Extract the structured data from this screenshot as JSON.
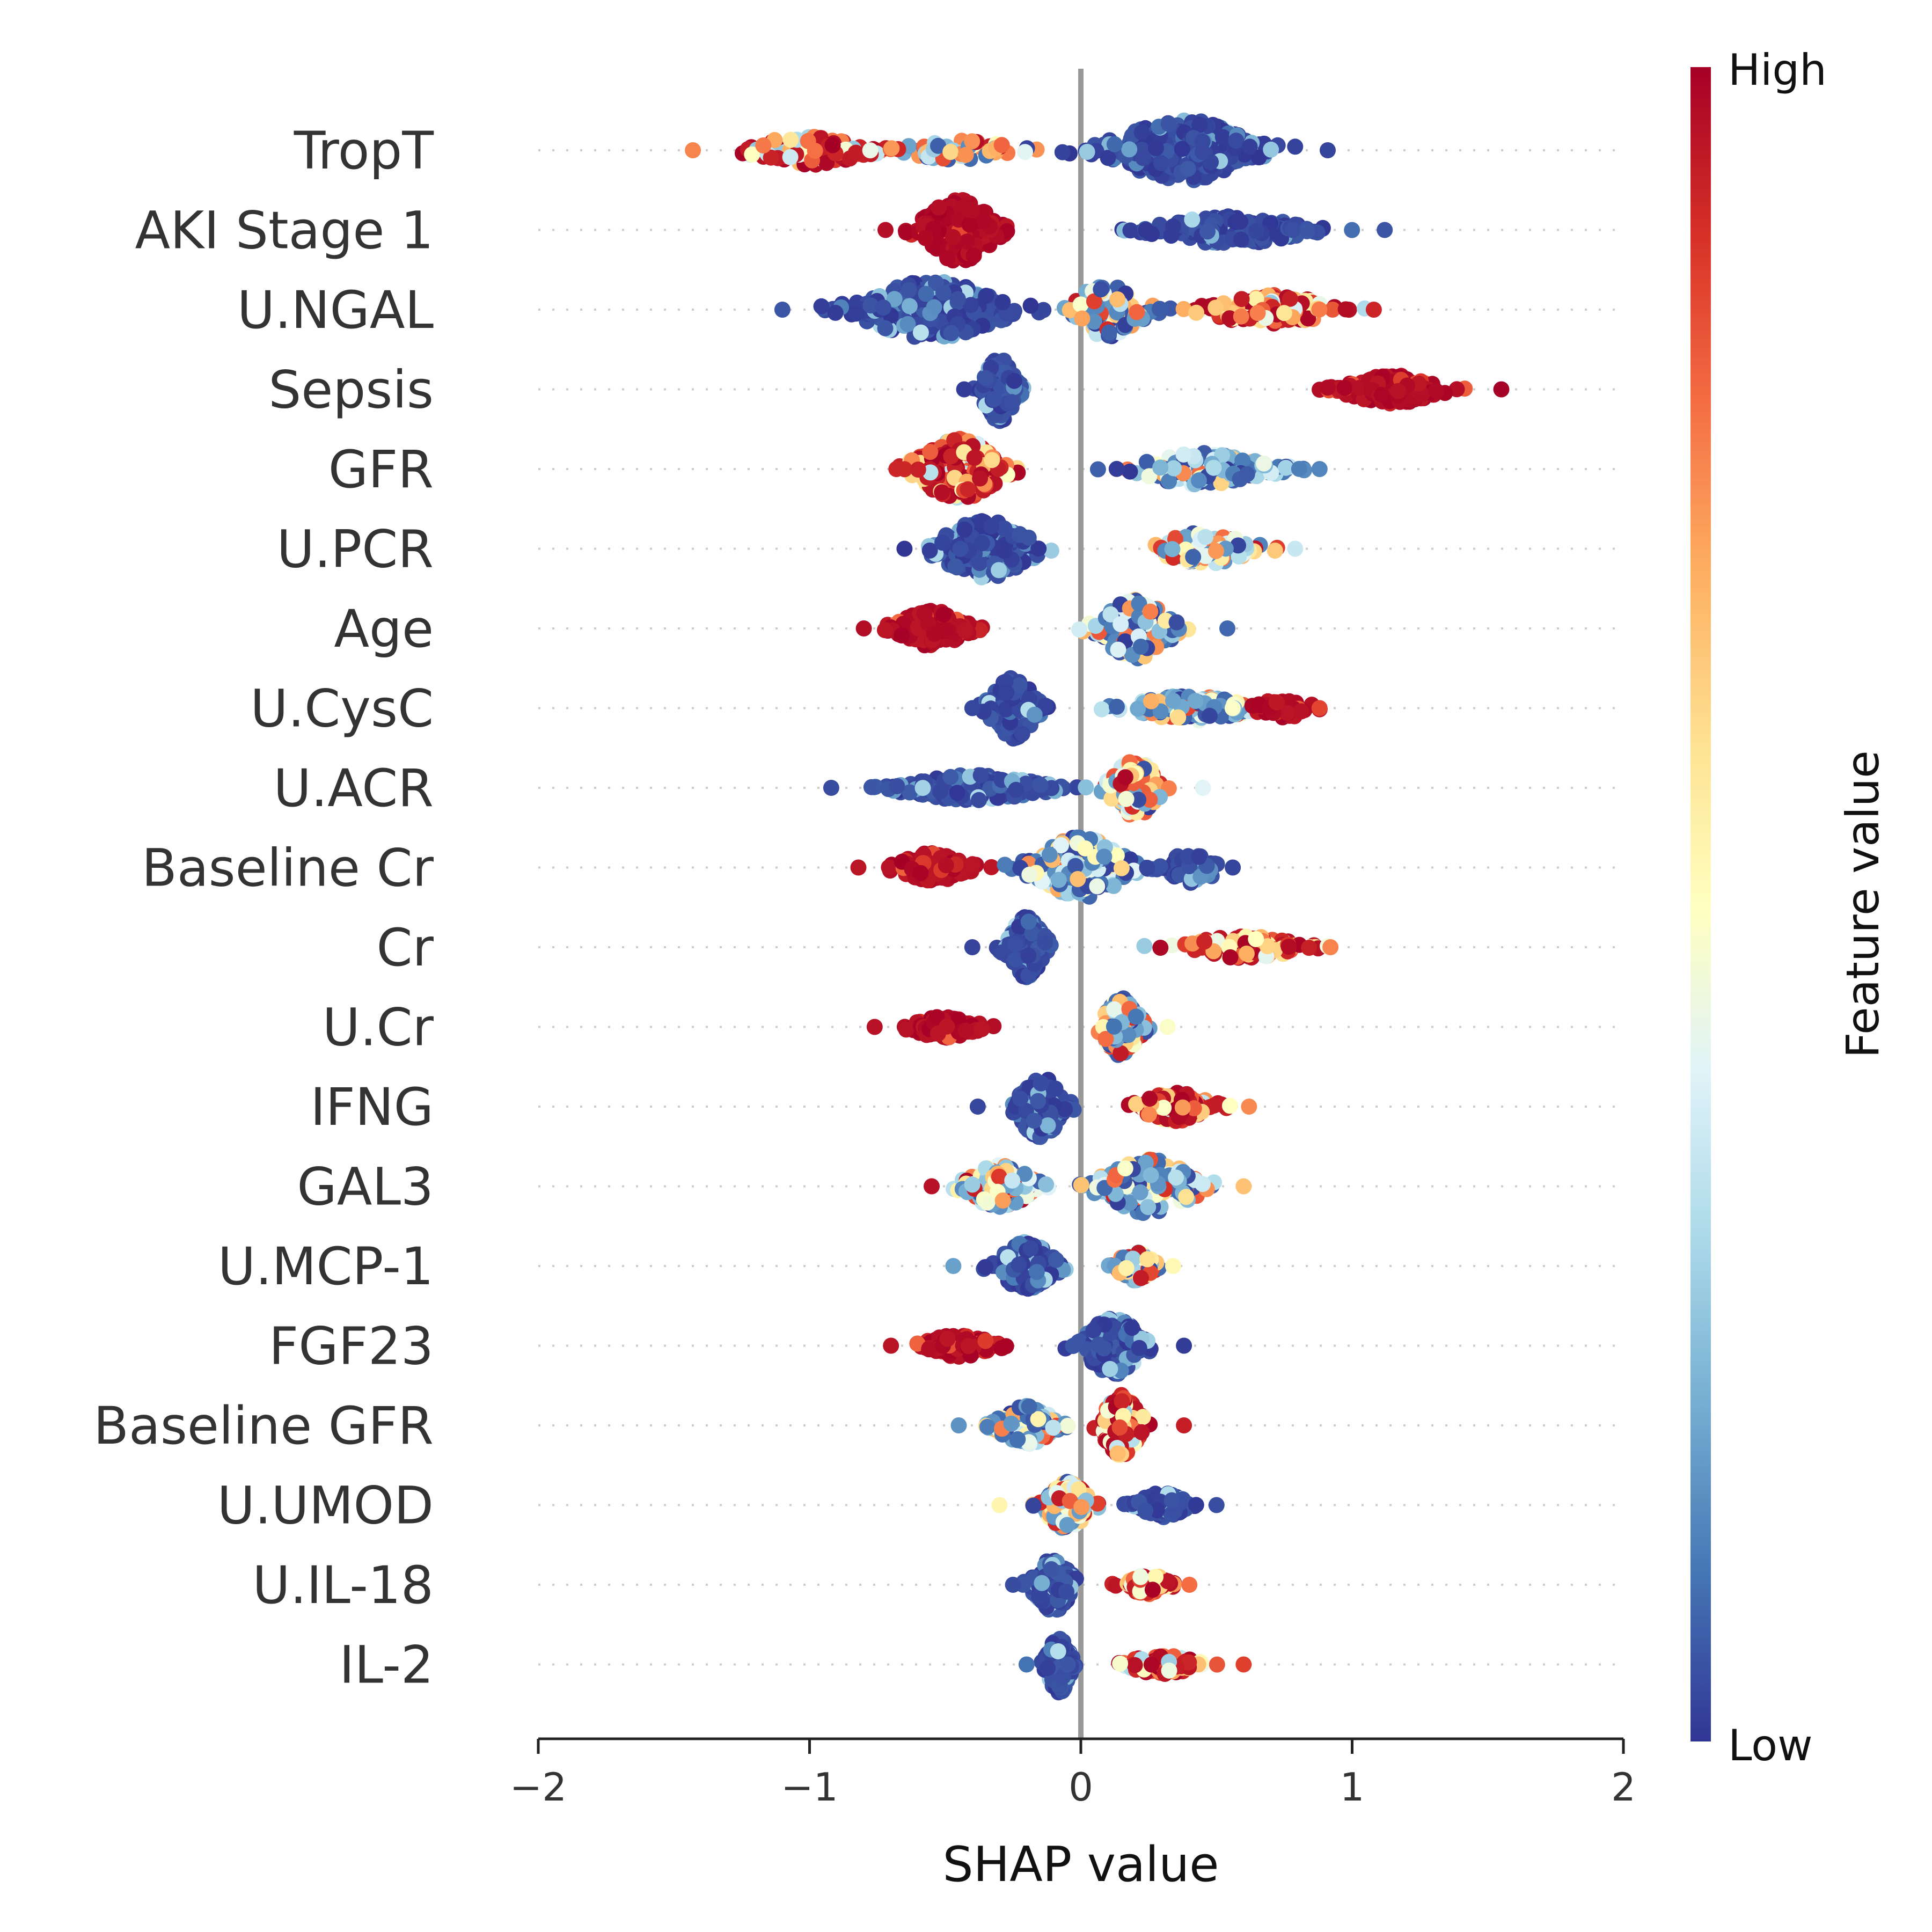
{
  "chart_data": {
    "type": "scatter",
    "subtype": "shap-beeswarm",
    "title": "",
    "xlabel": "SHAP value",
    "ylabel": "",
    "xlim": [
      -2,
      2
    ],
    "xticks": [
      -2,
      -1,
      0,
      1,
      2
    ],
    "xtick_labels": [
      "−2",
      "−1",
      "0",
      "1",
      "2"
    ],
    "zero_line": 0,
    "grid": "horizontal dotted row guides",
    "colorbar": {
      "title": "Feature value",
      "high_label": "High",
      "low_label": "Low",
      "colors": [
        "#313695",
        "#4575b4",
        "#74add1",
        "#abd9e9",
        "#e0f3f8",
        "#ffffbf",
        "#fee090",
        "#fdae61",
        "#f46d43",
        "#d73027",
        "#a50026"
      ]
    },
    "features": [
      {
        "name": "TropT",
        "min": -1.43,
        "max": 0.91,
        "clusters": [
          {
            "center": -1.0,
            "spread": 0.25,
            "height": 0.45,
            "n": 110,
            "color": "mixed-high"
          },
          {
            "center": -0.45,
            "spread": 0.25,
            "height": 0.3,
            "n": 60,
            "color": "mixed"
          },
          {
            "center": 0.38,
            "spread": 0.3,
            "height": 0.95,
            "n": 300,
            "color": "low"
          }
        ]
      },
      {
        "name": "AKI Stage 1",
        "min": -0.72,
        "max": 1.12,
        "clusters": [
          {
            "center": -0.45,
            "spread": 0.15,
            "height": 1.0,
            "n": 220,
            "color": "high"
          },
          {
            "center": 0.55,
            "spread": 0.3,
            "height": 0.45,
            "n": 170,
            "color": "low"
          }
        ]
      },
      {
        "name": "U.NGAL",
        "min": -1.1,
        "max": 1.08,
        "clusters": [
          {
            "center": -0.55,
            "spread": 0.3,
            "height": 0.9,
            "n": 260,
            "color": "low"
          },
          {
            "center": 0.1,
            "spread": 0.15,
            "height": 0.85,
            "n": 90,
            "color": "low-mixed"
          },
          {
            "center": 0.7,
            "spread": 0.25,
            "height": 0.5,
            "n": 120,
            "color": "mixed-high"
          }
        ]
      },
      {
        "name": "Sepsis",
        "min": -0.43,
        "max": 1.55,
        "clusters": [
          {
            "center": -0.3,
            "spread": 0.07,
            "height": 1.0,
            "n": 200,
            "color": "low"
          },
          {
            "center": 1.15,
            "spread": 0.2,
            "height": 0.45,
            "n": 160,
            "color": "high"
          }
        ]
      },
      {
        "name": "GFR",
        "min": -0.68,
        "max": 0.88,
        "clusters": [
          {
            "center": -0.45,
            "spread": 0.18,
            "height": 0.95,
            "n": 220,
            "color": "mixed-high"
          },
          {
            "center": 0.45,
            "spread": 0.28,
            "height": 0.5,
            "n": 170,
            "color": "mixed-low"
          }
        ]
      },
      {
        "name": "U.PCR",
        "min": -0.65,
        "max": 0.79,
        "clusters": [
          {
            "center": -0.35,
            "spread": 0.2,
            "height": 0.9,
            "n": 220,
            "color": "low"
          },
          {
            "center": 0.45,
            "spread": 0.2,
            "height": 0.5,
            "n": 120,
            "color": "mixed"
          }
        ]
      },
      {
        "name": "Age",
        "min": -0.8,
        "max": 0.54,
        "clusters": [
          {
            "center": -0.55,
            "spread": 0.15,
            "height": 0.55,
            "n": 150,
            "color": "high"
          },
          {
            "center": 0.2,
            "spread": 0.15,
            "height": 0.95,
            "n": 170,
            "color": "mixed-low"
          }
        ]
      },
      {
        "name": "U.CysC",
        "min": -0.4,
        "max": 0.88,
        "clusters": [
          {
            "center": -0.25,
            "spread": 0.1,
            "height": 0.95,
            "n": 170,
            "color": "low"
          },
          {
            "center": 0.4,
            "spread": 0.25,
            "height": 0.4,
            "n": 140,
            "color": "low-mixed"
          },
          {
            "center": 0.75,
            "spread": 0.12,
            "height": 0.3,
            "n": 40,
            "color": "high"
          }
        ]
      },
      {
        "name": "U.ACR",
        "min": -0.92,
        "max": 0.45,
        "clusters": [
          {
            "center": -0.4,
            "spread": 0.3,
            "height": 0.4,
            "n": 220,
            "color": "low"
          },
          {
            "center": 0.2,
            "spread": 0.1,
            "height": 0.9,
            "n": 120,
            "color": "mixed"
          }
        ]
      },
      {
        "name": "Baseline Cr",
        "min": -0.82,
        "max": 0.56,
        "clusters": [
          {
            "center": -0.55,
            "spread": 0.15,
            "height": 0.45,
            "n": 110,
            "color": "high"
          },
          {
            "center": 0.0,
            "spread": 0.2,
            "height": 0.95,
            "n": 240,
            "color": "mixed-low"
          },
          {
            "center": 0.4,
            "spread": 0.12,
            "height": 0.5,
            "n": 60,
            "color": "low"
          }
        ]
      },
      {
        "name": "Cr",
        "min": -0.4,
        "max": 0.92,
        "clusters": [
          {
            "center": -0.2,
            "spread": 0.08,
            "height": 0.95,
            "n": 150,
            "color": "low"
          },
          {
            "center": 0.6,
            "spread": 0.25,
            "height": 0.35,
            "n": 110,
            "color": "mixed-high"
          }
        ]
      },
      {
        "name": "U.Cr",
        "min": -0.76,
        "max": 0.32,
        "clusters": [
          {
            "center": -0.5,
            "spread": 0.14,
            "height": 0.35,
            "n": 100,
            "color": "high"
          },
          {
            "center": 0.15,
            "spread": 0.08,
            "height": 0.9,
            "n": 140,
            "color": "low-mixed"
          }
        ]
      },
      {
        "name": "IFNG",
        "min": -0.38,
        "max": 0.62,
        "clusters": [
          {
            "center": -0.15,
            "spread": 0.1,
            "height": 0.95,
            "n": 170,
            "color": "low"
          },
          {
            "center": 0.35,
            "spread": 0.15,
            "height": 0.45,
            "n": 110,
            "color": "mixed-high"
          }
        ]
      },
      {
        "name": "GAL3",
        "min": -0.55,
        "max": 0.6,
        "clusters": [
          {
            "center": -0.3,
            "spread": 0.15,
            "height": 0.65,
            "n": 160,
            "color": "mixed"
          },
          {
            "center": 0.25,
            "spread": 0.2,
            "height": 0.85,
            "n": 170,
            "color": "low-mixed"
          }
        ]
      },
      {
        "name": "U.MCP-1",
        "min": -0.47,
        "max": 0.34,
        "clusters": [
          {
            "center": -0.2,
            "spread": 0.12,
            "height": 0.75,
            "n": 180,
            "color": "low"
          },
          {
            "center": 0.2,
            "spread": 0.08,
            "height": 0.45,
            "n": 70,
            "color": "mixed"
          }
        ]
      },
      {
        "name": "FGF23",
        "min": -0.7,
        "max": 0.38,
        "clusters": [
          {
            "center": -0.45,
            "spread": 0.15,
            "height": 0.35,
            "n": 100,
            "color": "high"
          },
          {
            "center": 0.12,
            "spread": 0.12,
            "height": 0.9,
            "n": 180,
            "color": "low"
          }
        ]
      },
      {
        "name": "Baseline GFR",
        "min": -0.45,
        "max": 0.38,
        "clusters": [
          {
            "center": -0.2,
            "spread": 0.12,
            "height": 0.6,
            "n": 140,
            "color": "low-mixed"
          },
          {
            "center": 0.15,
            "spread": 0.08,
            "height": 0.95,
            "n": 160,
            "color": "mixed-high"
          }
        ]
      },
      {
        "name": "U.UMOD",
        "min": -0.3,
        "max": 0.5,
        "clusters": [
          {
            "center": -0.05,
            "spread": 0.1,
            "height": 0.75,
            "n": 160,
            "color": "mixed"
          },
          {
            "center": 0.3,
            "spread": 0.1,
            "height": 0.4,
            "n": 90,
            "color": "low"
          }
        ]
      },
      {
        "name": "U.IL-18",
        "min": -0.25,
        "max": 0.4,
        "clusters": [
          {
            "center": -0.1,
            "spread": 0.08,
            "height": 0.85,
            "n": 150,
            "color": "low"
          },
          {
            "center": 0.25,
            "spread": 0.1,
            "height": 0.3,
            "n": 80,
            "color": "mixed-high"
          }
        ]
      },
      {
        "name": "IL-2",
        "min": -0.2,
        "max": 0.6,
        "clusters": [
          {
            "center": -0.08,
            "spread": 0.05,
            "height": 0.9,
            "n": 130,
            "color": "low"
          },
          {
            "center": 0.3,
            "spread": 0.15,
            "height": 0.3,
            "n": 90,
            "color": "mixed-high"
          }
        ]
      }
    ]
  }
}
